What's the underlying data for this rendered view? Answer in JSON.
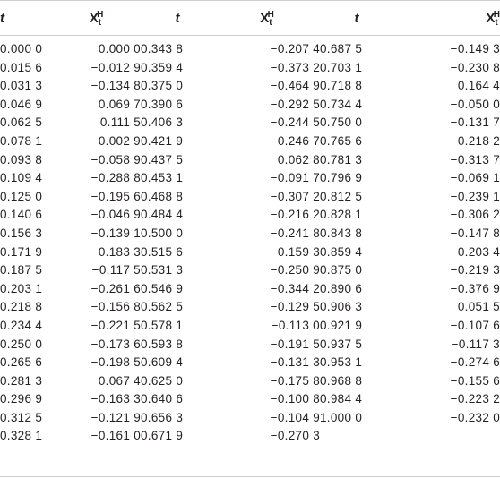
{
  "headers": {
    "t_label": "t",
    "x_base": "X",
    "x_sub": "t",
    "x_sup": "H"
  },
  "columns": [
    {
      "t": [
        "0.000 0",
        "0.015 6",
        "0.031 3",
        "0.046 9",
        "0.062 5",
        "0.078 1",
        "0.093 8",
        "0.109 4",
        "0.125 0",
        "0.140 6",
        "0.156 3",
        "0.171 9",
        "0.187 5",
        "0.203 1",
        "0.218 8",
        "0.234 4",
        "0.250 0",
        "0.265 6",
        "0.281 3",
        "0.296 9",
        "0.312 5",
        "0.328 1"
      ],
      "x": [
        "0.000 0",
        "−0.012 9",
        "−0.134 8",
        "0.069 7",
        "0.111 5",
        "0.002 9",
        "−0.058 9",
        "−0.288 8",
        "−0.195 6",
        "−0.046 9",
        "−0.139 1",
        "−0.183 3",
        "−0.117 5",
        "−0.261 6",
        "−0.156 8",
        "−0.221 5",
        "−0.173 6",
        "−0.198 5",
        "0.067 4",
        "−0.163 3",
        "−0.121 9",
        "−0.161 0"
      ]
    },
    {
      "t": [
        "0.343 8",
        "0.359 4",
        "0.375 0",
        "0.390 6",
        "0.406 3",
        "0.421 9",
        "0.437 5",
        "0.453 1",
        "0.468 8",
        "0.484 4",
        "0.500 0",
        "0.515 6",
        "0.531 3",
        "0.546 9",
        "0.562 5",
        "0.578 1",
        "0.593 8",
        "0.609 4",
        "0.625 0",
        "0.640 6",
        "0.656 3",
        "0.671 9"
      ],
      "x": [
        "−0.207 4",
        "−0.373 2",
        "−0.464 9",
        "−0.292 5",
        "−0.244 5",
        "−0.246 7",
        "0.062 8",
        "−0.091 7",
        "−0.307 2",
        "−0.216 2",
        "−0.241 8",
        "−0.159 3",
        "−0.250 9",
        "−0.344 2",
        "−0.129 5",
        "−0.113 0",
        "−0.191 5",
        "−0.131 3",
        "−0.175 8",
        "−0.100 8",
        "−0.104 9",
        "−0.270 3"
      ]
    },
    {
      "t": [
        "0.687 5",
        "0.703 1",
        "0.718 8",
        "0.734 4",
        "0.750 0",
        "0.765 6",
        "0.781 3",
        "0.796 9",
        "0.812 5",
        "0.828 1",
        "0.843 8",
        "0.859 4",
        "0.875 0",
        "0.890 6",
        "0.906 3",
        "0.921 9",
        "0.937 5",
        "0.953 1",
        "0.968 8",
        "0.984 4",
        "1.000 0",
        ""
      ],
      "x": [
        "−0.149 3",
        "−0.230 8",
        "0.164 4",
        "−0.050 0",
        "−0.131 7",
        "−0.218 2",
        "−0.313 7",
        "−0.069 1",
        "−0.239 1",
        "−0.306 2",
        "−0.147 8",
        "−0.203 4",
        "−0.219 3",
        "−0.376 9",
        "0.051 5",
        "−0.107 6",
        "−0.117 3",
        "−0.274 6",
        "−0.155 6",
        "−0.223 2",
        "−0.232 0",
        ""
      ]
    }
  ]
}
